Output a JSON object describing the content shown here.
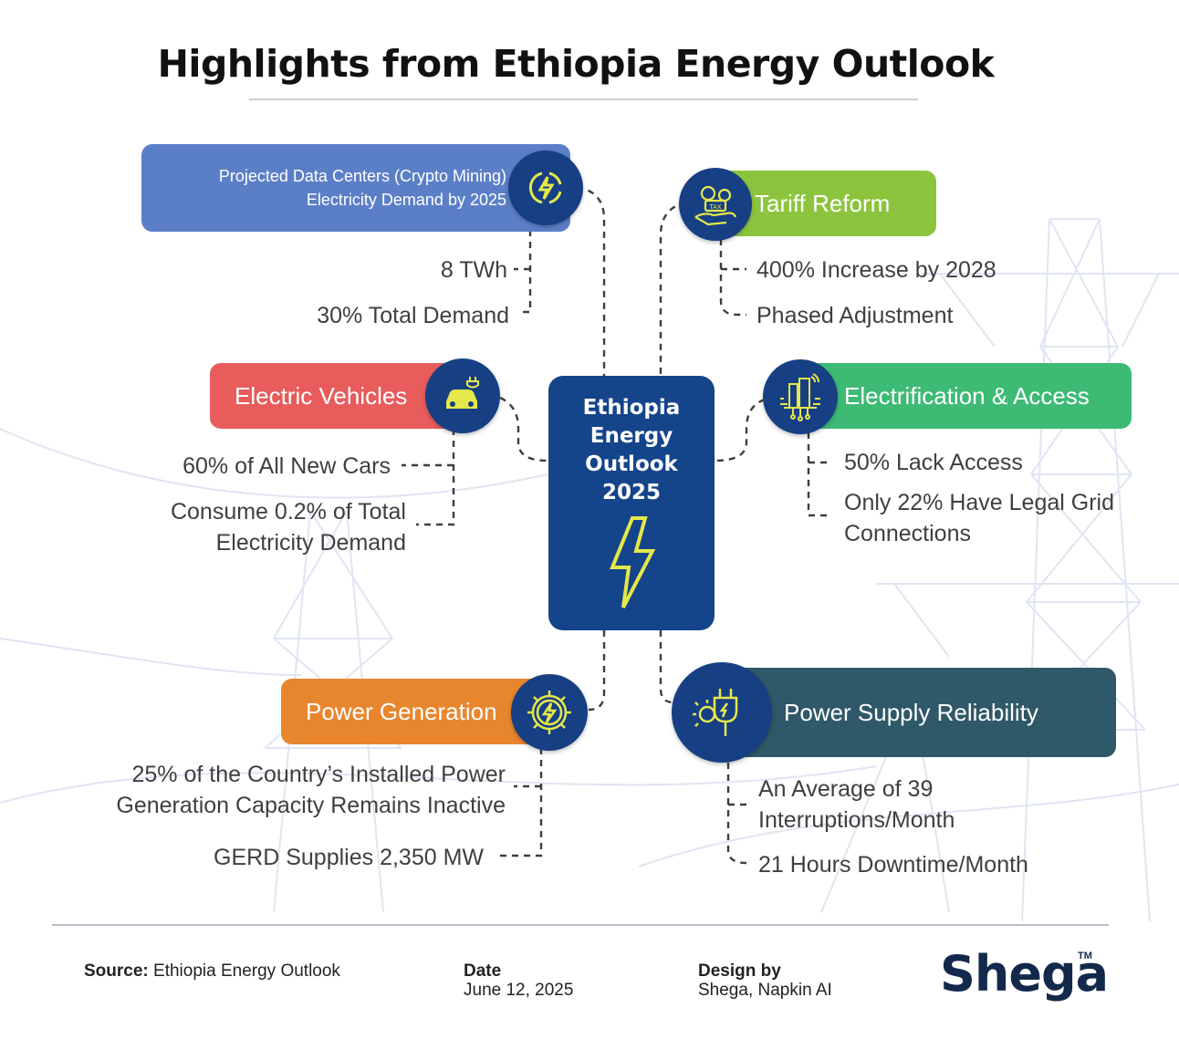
{
  "title": "Highlights from Ethiopia Energy Outlook",
  "center": {
    "title": "Ethiopia\nEnergy\nOutlook\n2025"
  },
  "sections": {
    "data_centers": {
      "title": "Projected Data Centers (Crypto Mining) Electricity Demand by 2025",
      "title_line1": "Projected Data Centers (Crypto Mining)",
      "title_line2": "Electricity Demand by 2025",
      "color": "#5b7fc7",
      "points": [
        "8 TWh",
        "30% Total Demand"
      ]
    },
    "tariff": {
      "title": "Tariff Reform",
      "icon_text": "TAX",
      "color": "#8cc43e",
      "points": [
        "400% Increase by 2028",
        "Phased Adjustment"
      ]
    },
    "ev": {
      "title": "Electric Vehicles",
      "color": "#e85c5c",
      "points": [
        "60% of All New Cars",
        "Consume 0.2% of Total",
        "Electricity Demand"
      ]
    },
    "electrification": {
      "title": "Electrification & Access",
      "color": "#3dba74",
      "points": [
        "50% Lack Access",
        "Only 22% Have Legal Grid",
        "Connections"
      ]
    },
    "generation": {
      "title": "Power Generation",
      "color": "#e8862e",
      "points": [
        "25% of the Country’s Installed Power",
        "Generation Capacity Remains Inactive",
        "GERD Supplies 2,350 MW"
      ]
    },
    "reliability": {
      "title": "Power Supply Reliability",
      "color": "#2f5868",
      "points": [
        "An Average of 39",
        "Interruptions/Month",
        "21 Hours Downtime/Month"
      ]
    }
  },
  "footer": {
    "source_label": "Source:",
    "source_value": "Ethiopia Energy Outlook",
    "date_label": "Date",
    "date_value": "June 12, 2025",
    "design_label": "Design by",
    "design_value": "Shega, Napkin AI",
    "logo": "Shega",
    "tm": "TM"
  },
  "colors": {
    "navy": "#173f84",
    "icon_yellow": "#e5e84a"
  }
}
